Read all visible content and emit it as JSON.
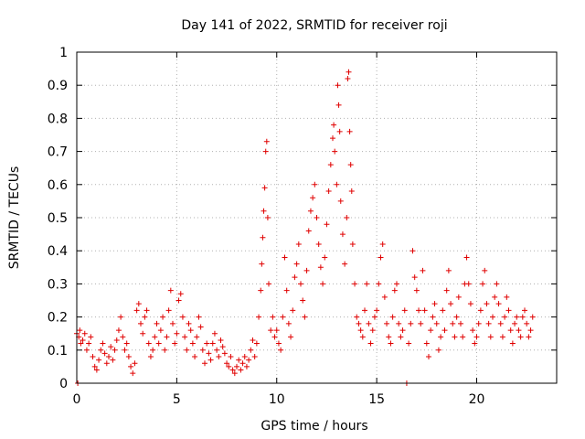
{
  "chart_data": {
    "type": "scatter",
    "title": "Day 141 of 2022, SRMTID for receiver roji",
    "xlabel": "GPS time / hours",
    "ylabel": "SRMTID / TECUs",
    "xlim": [
      0,
      24
    ],
    "ylim": [
      0,
      1
    ],
    "x_ticks": [
      0,
      5,
      10,
      15,
      20
    ],
    "x_tick_labels": [
      "0",
      "5",
      "10",
      "15",
      "20"
    ],
    "y_ticks": [
      0,
      0.1,
      0.2,
      0.3,
      0.4,
      0.5,
      0.6,
      0.7,
      0.8,
      0.9,
      1
    ],
    "y_tick_labels": [
      "0",
      "0.1",
      "0.2",
      "0.3",
      "0.4",
      "0.5",
      "0.6",
      "0.7",
      "0.8",
      "0.9",
      "1"
    ],
    "grid": true,
    "marker": "+",
    "color": "#e00000",
    "series": [
      {
        "name": "SRMTID",
        "points": [
          [
            0.0,
            0.15
          ],
          [
            0.05,
            0.0
          ],
          [
            0.1,
            0.14
          ],
          [
            0.15,
            0.16
          ],
          [
            0.2,
            0.12
          ],
          [
            0.3,
            0.13
          ],
          [
            0.4,
            0.15
          ],
          [
            0.5,
            0.1
          ],
          [
            0.6,
            0.12
          ],
          [
            0.7,
            0.14
          ],
          [
            0.8,
            0.08
          ],
          [
            0.9,
            0.05
          ],
          [
            1.0,
            0.04
          ],
          [
            1.1,
            0.07
          ],
          [
            1.2,
            0.1
          ],
          [
            1.3,
            0.12
          ],
          [
            1.4,
            0.09
          ],
          [
            1.5,
            0.06
          ],
          [
            1.6,
            0.08
          ],
          [
            1.7,
            0.11
          ],
          [
            1.8,
            0.07
          ],
          [
            1.9,
            0.1
          ],
          [
            2.0,
            0.13
          ],
          [
            2.1,
            0.16
          ],
          [
            2.2,
            0.2
          ],
          [
            2.3,
            0.14
          ],
          [
            2.4,
            0.1
          ],
          [
            2.5,
            0.12
          ],
          [
            2.6,
            0.08
          ],
          [
            2.7,
            0.05
          ],
          [
            2.8,
            0.03
          ],
          [
            2.9,
            0.06
          ],
          [
            3.0,
            0.22
          ],
          [
            3.1,
            0.24
          ],
          [
            3.2,
            0.18
          ],
          [
            3.3,
            0.15
          ],
          [
            3.4,
            0.2
          ],
          [
            3.5,
            0.22
          ],
          [
            3.6,
            0.12
          ],
          [
            3.7,
            0.08
          ],
          [
            3.8,
            0.1
          ],
          [
            3.9,
            0.14
          ],
          [
            4.0,
            0.18
          ],
          [
            4.1,
            0.12
          ],
          [
            4.2,
            0.16
          ],
          [
            4.3,
            0.2
          ],
          [
            4.4,
            0.1
          ],
          [
            4.5,
            0.14
          ],
          [
            4.6,
            0.22
          ],
          [
            4.7,
            0.28
          ],
          [
            4.8,
            0.18
          ],
          [
            4.9,
            0.12
          ],
          [
            5.0,
            0.15
          ],
          [
            5.1,
            0.25
          ],
          [
            5.2,
            0.27
          ],
          [
            5.3,
            0.2
          ],
          [
            5.4,
            0.14
          ],
          [
            5.5,
            0.1
          ],
          [
            5.6,
            0.18
          ],
          [
            5.7,
            0.16
          ],
          [
            5.8,
            0.12
          ],
          [
            5.9,
            0.08
          ],
          [
            6.0,
            0.14
          ],
          [
            6.1,
            0.2
          ],
          [
            6.2,
            0.17
          ],
          [
            6.3,
            0.1
          ],
          [
            6.4,
            0.06
          ],
          [
            6.5,
            0.12
          ],
          [
            6.6,
            0.09
          ],
          [
            6.7,
            0.07
          ],
          [
            6.8,
            0.12
          ],
          [
            6.9,
            0.15
          ],
          [
            7.0,
            0.1
          ],
          [
            7.1,
            0.08
          ],
          [
            7.2,
            0.13
          ],
          [
            7.3,
            0.11
          ],
          [
            7.4,
            0.09
          ],
          [
            7.5,
            0.06
          ],
          [
            7.6,
            0.05
          ],
          [
            7.7,
            0.08
          ],
          [
            7.8,
            0.04
          ],
          [
            7.9,
            0.03
          ],
          [
            8.0,
            0.05
          ],
          [
            8.1,
            0.07
          ],
          [
            8.2,
            0.04
          ],
          [
            8.3,
            0.06
          ],
          [
            8.4,
            0.08
          ],
          [
            8.5,
            0.05
          ],
          [
            8.6,
            0.07
          ],
          [
            8.7,
            0.1
          ],
          [
            8.8,
            0.13
          ],
          [
            8.9,
            0.08
          ],
          [
            9.0,
            0.12
          ],
          [
            9.1,
            0.2
          ],
          [
            9.2,
            0.28
          ],
          [
            9.25,
            0.36
          ],
          [
            9.3,
            0.44
          ],
          [
            9.35,
            0.52
          ],
          [
            9.4,
            0.59
          ],
          [
            9.45,
            0.7
          ],
          [
            9.5,
            0.73
          ],
          [
            9.55,
            0.5
          ],
          [
            9.6,
            0.3
          ],
          [
            9.7,
            0.16
          ],
          [
            9.8,
            0.2
          ],
          [
            9.9,
            0.14
          ],
          [
            10.0,
            0.16
          ],
          [
            10.1,
            0.12
          ],
          [
            10.2,
            0.1
          ],
          [
            10.3,
            0.2
          ],
          [
            10.4,
            0.38
          ],
          [
            10.5,
            0.28
          ],
          [
            10.6,
            0.18
          ],
          [
            10.7,
            0.14
          ],
          [
            10.8,
            0.22
          ],
          [
            10.9,
            0.32
          ],
          [
            11.0,
            0.36
          ],
          [
            11.1,
            0.42
          ],
          [
            11.2,
            0.3
          ],
          [
            11.3,
            0.25
          ],
          [
            11.4,
            0.2
          ],
          [
            11.5,
            0.34
          ],
          [
            11.6,
            0.46
          ],
          [
            11.7,
            0.52
          ],
          [
            11.8,
            0.56
          ],
          [
            11.9,
            0.6
          ],
          [
            12.0,
            0.5
          ],
          [
            12.1,
            0.42
          ],
          [
            12.2,
            0.35
          ],
          [
            12.3,
            0.3
          ],
          [
            12.4,
            0.38
          ],
          [
            12.5,
            0.48
          ],
          [
            12.6,
            0.58
          ],
          [
            12.7,
            0.66
          ],
          [
            12.8,
            0.74
          ],
          [
            12.85,
            0.78
          ],
          [
            12.9,
            0.7
          ],
          [
            13.0,
            0.6
          ],
          [
            13.05,
            0.9
          ],
          [
            13.1,
            0.84
          ],
          [
            13.15,
            0.76
          ],
          [
            13.2,
            0.55
          ],
          [
            13.3,
            0.45
          ],
          [
            13.4,
            0.36
          ],
          [
            13.5,
            0.5
          ],
          [
            13.55,
            0.92
          ],
          [
            13.6,
            0.94
          ],
          [
            13.65,
            0.76
          ],
          [
            13.7,
            0.66
          ],
          [
            13.75,
            0.58
          ],
          [
            13.8,
            0.42
          ],
          [
            13.9,
            0.3
          ],
          [
            14.0,
            0.2
          ],
          [
            14.1,
            0.18
          ],
          [
            14.2,
            0.16
          ],
          [
            14.3,
            0.14
          ],
          [
            14.4,
            0.22
          ],
          [
            14.5,
            0.3
          ],
          [
            14.6,
            0.18
          ],
          [
            14.7,
            0.12
          ],
          [
            14.8,
            0.16
          ],
          [
            14.9,
            0.2
          ],
          [
            15.0,
            0.22
          ],
          [
            15.1,
            0.3
          ],
          [
            15.2,
            0.38
          ],
          [
            15.3,
            0.42
          ],
          [
            15.4,
            0.26
          ],
          [
            15.5,
            0.18
          ],
          [
            15.6,
            0.14
          ],
          [
            15.7,
            0.12
          ],
          [
            15.8,
            0.2
          ],
          [
            15.9,
            0.28
          ],
          [
            16.0,
            0.3
          ],
          [
            16.1,
            0.18
          ],
          [
            16.2,
            0.14
          ],
          [
            16.3,
            0.16
          ],
          [
            16.4,
            0.22
          ],
          [
            16.5,
            0.0
          ],
          [
            16.6,
            0.12
          ],
          [
            16.7,
            0.18
          ],
          [
            16.8,
            0.4
          ],
          [
            16.9,
            0.32
          ],
          [
            17.0,
            0.28
          ],
          [
            17.1,
            0.22
          ],
          [
            17.2,
            0.18
          ],
          [
            17.3,
            0.34
          ],
          [
            17.4,
            0.22
          ],
          [
            17.5,
            0.12
          ],
          [
            17.6,
            0.08
          ],
          [
            17.7,
            0.16
          ],
          [
            17.8,
            0.2
          ],
          [
            17.9,
            0.24
          ],
          [
            18.0,
            0.18
          ],
          [
            18.1,
            0.1
          ],
          [
            18.2,
            0.14
          ],
          [
            18.3,
            0.22
          ],
          [
            18.4,
            0.16
          ],
          [
            18.5,
            0.28
          ],
          [
            18.6,
            0.34
          ],
          [
            18.7,
            0.24
          ],
          [
            18.8,
            0.18
          ],
          [
            18.9,
            0.14
          ],
          [
            19.0,
            0.2
          ],
          [
            19.1,
            0.26
          ],
          [
            19.2,
            0.18
          ],
          [
            19.3,
            0.14
          ],
          [
            19.4,
            0.3
          ],
          [
            19.5,
            0.38
          ],
          [
            19.6,
            0.3
          ],
          [
            19.7,
            0.24
          ],
          [
            19.8,
            0.16
          ],
          [
            19.9,
            0.12
          ],
          [
            20.0,
            0.14
          ],
          [
            20.1,
            0.18
          ],
          [
            20.2,
            0.22
          ],
          [
            20.3,
            0.3
          ],
          [
            20.4,
            0.34
          ],
          [
            20.5,
            0.24
          ],
          [
            20.6,
            0.18
          ],
          [
            20.7,
            0.14
          ],
          [
            20.8,
            0.2
          ],
          [
            20.9,
            0.26
          ],
          [
            21.0,
            0.3
          ],
          [
            21.1,
            0.24
          ],
          [
            21.2,
            0.18
          ],
          [
            21.3,
            0.14
          ],
          [
            21.4,
            0.2
          ],
          [
            21.5,
            0.26
          ],
          [
            21.6,
            0.22
          ],
          [
            21.7,
            0.16
          ],
          [
            21.8,
            0.12
          ],
          [
            21.9,
            0.18
          ],
          [
            22.0,
            0.2
          ],
          [
            22.1,
            0.16
          ],
          [
            22.2,
            0.14
          ],
          [
            22.3,
            0.2
          ],
          [
            22.4,
            0.22
          ],
          [
            22.5,
            0.18
          ],
          [
            22.6,
            0.14
          ],
          [
            22.7,
            0.16
          ],
          [
            22.8,
            0.2
          ]
        ]
      }
    ]
  }
}
